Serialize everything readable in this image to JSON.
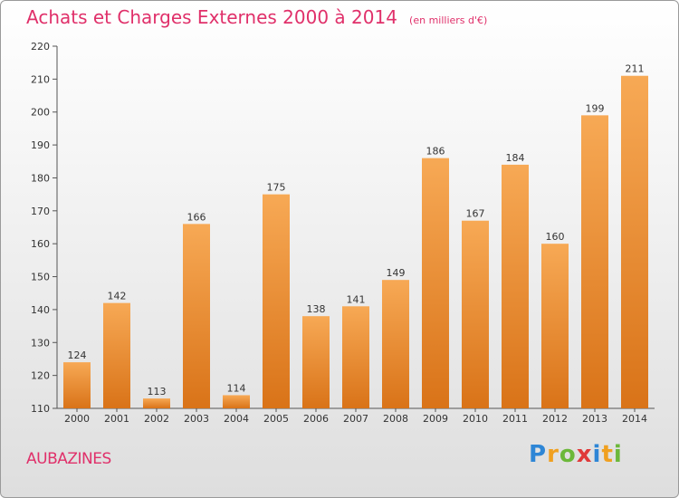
{
  "page": {
    "title": "Achats et Charges Externes 2000 à 2014",
    "subtitle": "(en milliers d'€)",
    "commune": "AUBAZINES",
    "logo": {
      "text": "Proxiti",
      "letters": [
        {
          "char": "P",
          "color": "#2e86d6"
        },
        {
          "char": "r",
          "color": "#f0a020"
        },
        {
          "char": "o",
          "color": "#6cb83a"
        },
        {
          "char": "x",
          "color": "#e03a3a"
        },
        {
          "char": "i",
          "color": "#2e86d6"
        },
        {
          "char": "t",
          "color": "#f0a020"
        },
        {
          "char": "i",
          "color": "#6cb83a"
        }
      ]
    }
  },
  "chart_data": {
    "type": "bar",
    "title": "Achats et Charges Externes 2000 à 2014",
    "subtitle": "(en milliers d'€)",
    "categories": [
      "2000",
      "2001",
      "2002",
      "2003",
      "2004",
      "2005",
      "2006",
      "2007",
      "2008",
      "2009",
      "2010",
      "2011",
      "2012",
      "2013",
      "2014"
    ],
    "values": [
      124,
      142,
      113,
      166,
      114,
      175,
      138,
      141,
      149,
      186,
      167,
      184,
      160,
      199,
      211
    ],
    "ylim": [
      110,
      220
    ],
    "yticks": [
      110,
      120,
      130,
      140,
      150,
      160,
      170,
      180,
      190,
      200,
      210,
      220
    ],
    "grid": false,
    "data_labels": true,
    "bar_color": "#f0902f",
    "title_color": "#e0306a"
  }
}
